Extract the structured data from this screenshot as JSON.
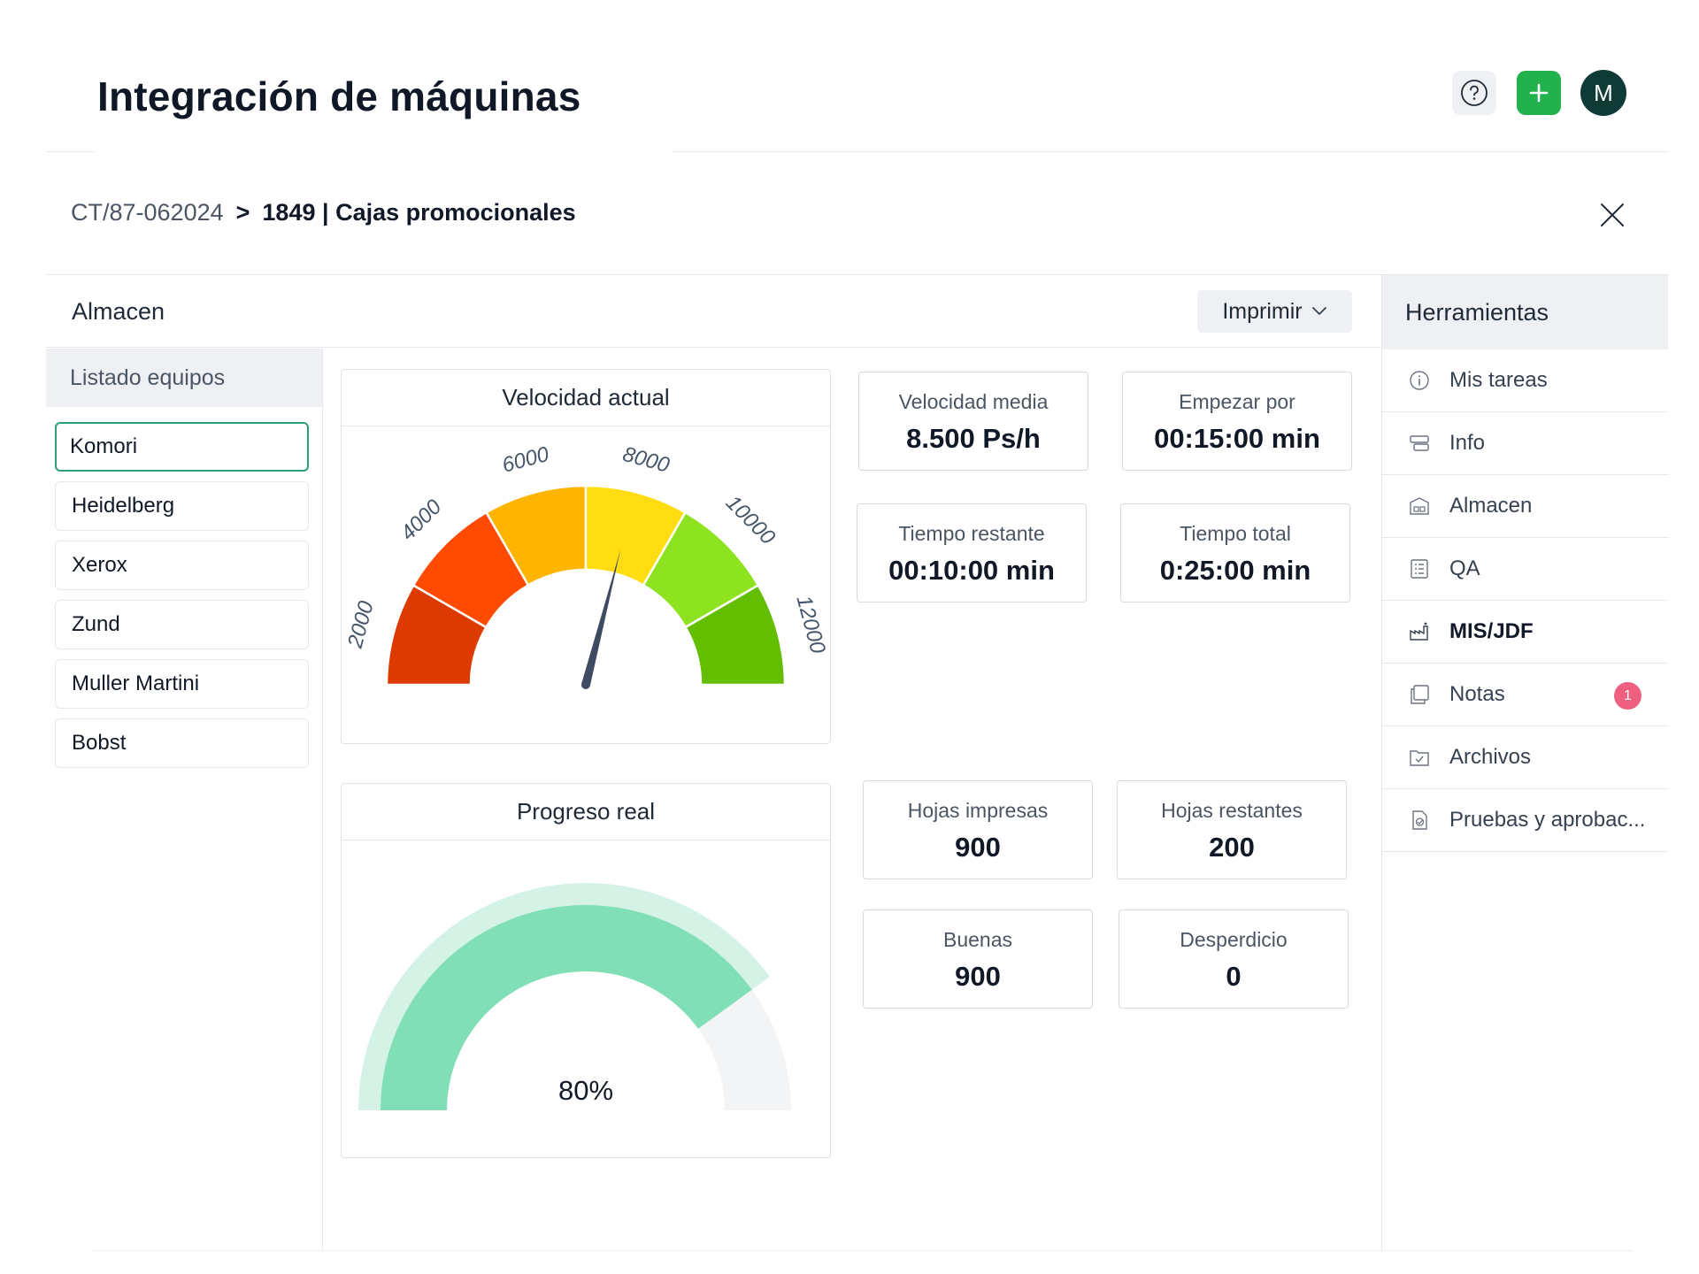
{
  "header": {
    "title": "Integración de máquinas",
    "avatar_initial": "M",
    "help_icon": "question-circle-icon",
    "add_icon": "plus-icon"
  },
  "breadcrumb": {
    "code": "CT/87-062024",
    "separator": ">",
    "job_number": "1849",
    "divider": "|",
    "job_name": "Cajas promocionales"
  },
  "panel": {
    "title": "Almacen",
    "print_label": "Imprimir"
  },
  "sidebar": {
    "heading": "Listado equipos",
    "machines": [
      "Komori",
      "Heidelberg",
      "Xerox",
      "Zund",
      "Muller Martini",
      "Bobst"
    ],
    "selected": "Komori"
  },
  "speed_gauge": {
    "title": "Velocidad actual",
    "scale_labels": [
      "2000",
      "4000",
      "6000",
      "8000",
      "10000",
      "12000"
    ],
    "segment_colors": [
      "#dc3a00",
      "#ff4a00",
      "#ffb400",
      "#ffdd10",
      "#8ee321",
      "#63bd00"
    ],
    "needle_fraction": 0.58
  },
  "stats_top": {
    "avg_speed": {
      "label": "Velocidad media",
      "value": "8.500 Ps/h"
    },
    "start_in": {
      "label": "Empezar por",
      "value": "00:15:00 min"
    },
    "remaining": {
      "label": "Tiempo restante",
      "value": "00:10:00 min"
    },
    "total": {
      "label": "Tiempo total",
      "value": "0:25:00 min"
    }
  },
  "progress_gauge": {
    "title": "Progreso real",
    "value_label": "80%",
    "fraction": 0.8,
    "fill_color": "#80dfb7",
    "halo_color": "#d5f2e6",
    "track_color": "#f3f4f6"
  },
  "stats_bottom": {
    "printed": {
      "label": "Hojas impresas",
      "value": "900"
    },
    "remaining_sheets": {
      "label": "Hojas restantes",
      "value": "200"
    },
    "good": {
      "label": "Buenas",
      "value": "900"
    },
    "waste": {
      "label": "Desperdicio",
      "value": "0"
    }
  },
  "tools": {
    "heading": "Herramientas",
    "items": [
      {
        "label": "Mis tareas",
        "icon": "info-circle-icon"
      },
      {
        "label": "Info",
        "icon": "info-card-icon"
      },
      {
        "label": "Almacen",
        "icon": "warehouse-icon"
      },
      {
        "label": "QA",
        "icon": "checklist-icon"
      },
      {
        "label": "MIS/JDF",
        "icon": "factory-icon",
        "active": true
      },
      {
        "label": "Notas",
        "icon": "notes-icon",
        "badge": "1"
      },
      {
        "label": "Archivos",
        "icon": "folder-check-icon"
      },
      {
        "label": "Pruebas y aprobac...",
        "icon": "proof-document-icon"
      }
    ]
  },
  "colors": {
    "brand_green": "#22b14c",
    "avatar_bg": "#0e3b36",
    "selected_border": "#2e9e7a",
    "badge": "#ef5f7f"
  }
}
